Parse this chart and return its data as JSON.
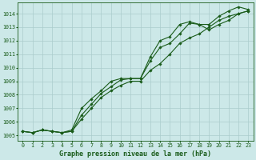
{
  "xlabel": "Graphe pression niveau de la mer (hPa)",
  "bg_color": "#cce8e8",
  "grid_color": "#aacccc",
  "line_color": "#1a5c1a",
  "x_values": [
    0,
    1,
    2,
    3,
    4,
    5,
    6,
    7,
    8,
    9,
    10,
    11,
    12,
    13,
    14,
    15,
    16,
    17,
    18,
    19,
    20,
    21,
    22,
    23
  ],
  "line1": [
    1005.3,
    1005.2,
    1005.4,
    1005.3,
    1005.2,
    1005.3,
    1006.2,
    1007.0,
    1007.8,
    1008.3,
    1008.7,
    1009.0,
    1009.0,
    1009.8,
    1010.3,
    1011.0,
    1011.8,
    1012.2,
    1012.5,
    1013.0,
    1013.5,
    1013.8,
    1014.0,
    1014.2
  ],
  "line2": [
    1005.3,
    1005.2,
    1005.4,
    1005.3,
    1005.2,
    1005.3,
    1006.5,
    1007.3,
    1008.1,
    1008.6,
    1009.1,
    1009.2,
    1009.2,
    1010.5,
    1011.5,
    1011.8,
    1012.5,
    1013.3,
    1013.2,
    1013.2,
    1013.8,
    1014.2,
    1014.5,
    1014.3
  ],
  "line3": [
    1005.3,
    1005.2,
    1005.4,
    1005.3,
    1005.2,
    1005.4,
    1007.0,
    1007.7,
    1008.3,
    1009.0,
    1009.2,
    1009.2,
    1009.2,
    1010.8,
    1012.0,
    1012.3,
    1013.2,
    1013.4,
    1013.2,
    1012.8,
    1013.2,
    1013.5,
    1014.0,
    1014.2
  ],
  "ylim_min": 1004.6,
  "ylim_max": 1014.8,
  "yticks": [
    1005,
    1006,
    1007,
    1008,
    1009,
    1010,
    1011,
    1012,
    1013,
    1014
  ],
  "xticks": [
    0,
    1,
    2,
    3,
    4,
    5,
    6,
    7,
    8,
    9,
    10,
    11,
    12,
    13,
    14,
    15,
    16,
    17,
    18,
    19,
    20,
    21,
    22,
    23
  ],
  "marker": "D",
  "markersize": 1.8,
  "linewidth": 0.8,
  "tick_fontsize": 4.8,
  "label_fontsize": 6.0
}
